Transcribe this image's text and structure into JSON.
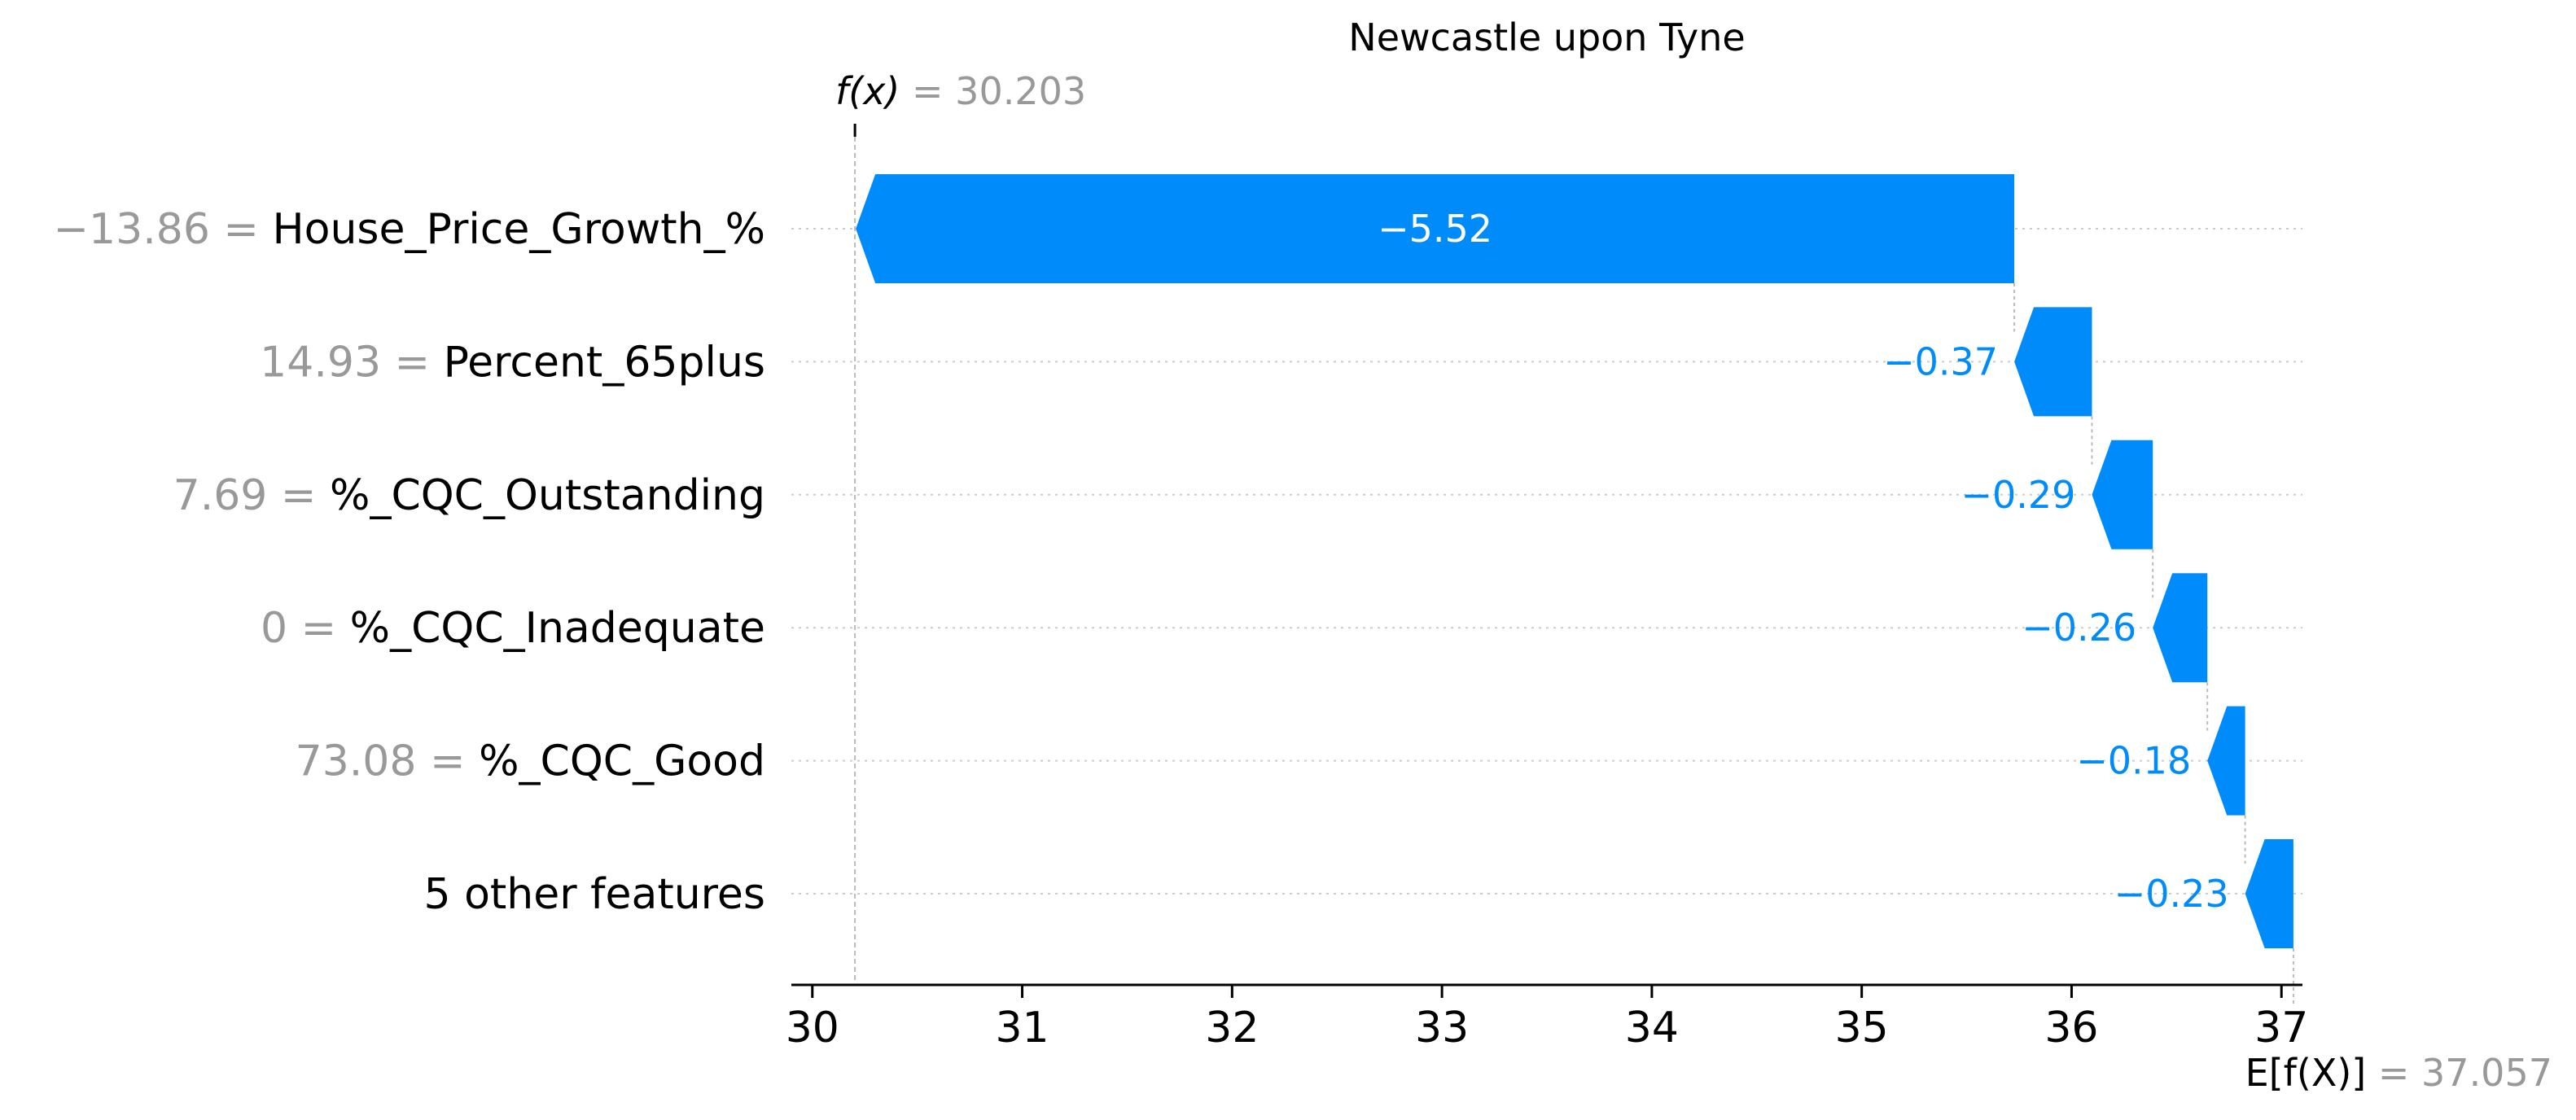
{
  "chart_data": {
    "type": "waterfall",
    "title": "Newcastle upon Tyne",
    "fx_label": "f(x)",
    "fx_value": "30.203",
    "fx": 30.203,
    "ex_label": "E[f(X)]",
    "ex_value": "37.057",
    "ex": 37.057,
    "x_ticks": [
      "30",
      "31",
      "32",
      "33",
      "34",
      "35",
      "36",
      "37"
    ],
    "xlim": [
      29.9,
      37.1
    ],
    "features": [
      {
        "value": "−13.86",
        "name": "House_Price_Growth_%",
        "shap": -5.52,
        "label": "−5.52"
      },
      {
        "value": "14.93",
        "name": "Percent_65plus",
        "shap": -0.37,
        "label": "−0.37"
      },
      {
        "value": "7.69",
        "name": "%_CQC_Outstanding",
        "shap": -0.29,
        "label": "−0.29"
      },
      {
        "value": "0",
        "name": "%_CQC_Inadequate",
        "shap": -0.26,
        "label": "−0.26"
      },
      {
        "value": "73.08",
        "name": "%_CQC_Good",
        "shap": -0.18,
        "label": "−0.18"
      },
      {
        "value": "",
        "name": "5 other features",
        "shap": -0.23,
        "label": "−0.23"
      }
    ],
    "colors": {
      "negative": "#008bfb",
      "text": "#000000",
      "muted": "#999999",
      "label_inside": "#ffffff",
      "guide": "#bbbbbb",
      "dotted": "#cccccc"
    }
  }
}
